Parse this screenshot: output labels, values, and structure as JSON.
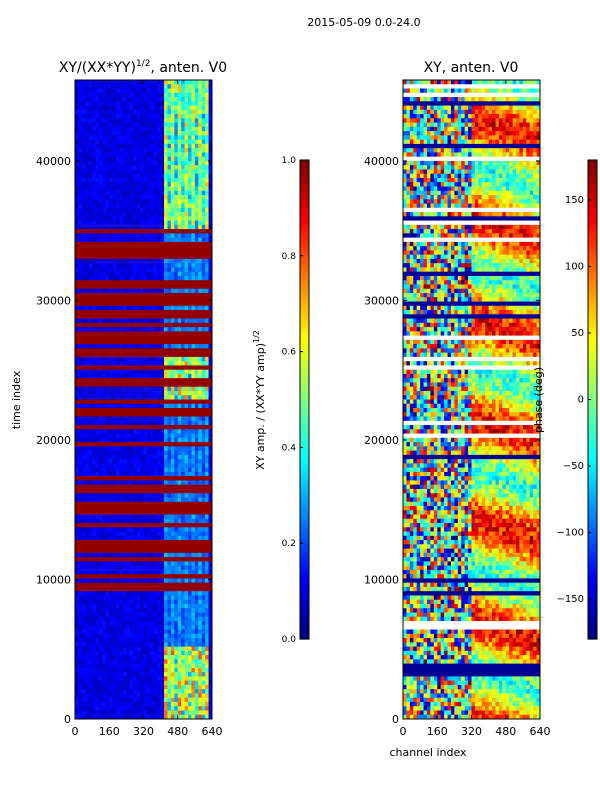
{
  "figure": {
    "suptitle": "2015-05-09 0.0-24.0"
  },
  "chart_data": [
    {
      "type": "heatmap",
      "title": "XY/(XX*YY)^1/2, anten. V0",
      "title_parts": {
        "base": "XY/(XX*YY)",
        "sup": "1/2",
        "tail": ", anten. V0"
      },
      "xlabel": "",
      "ylabel": "time index",
      "xlim": [
        0,
        640
      ],
      "ylim": [
        0,
        45800
      ],
      "xticks": [
        0,
        160,
        320,
        480,
        640
      ],
      "yticks": [
        0,
        10000,
        20000,
        30000,
        40000
      ],
      "colormap": "jet",
      "colorbar": {
        "range": [
          0.0,
          1.0
        ],
        "ticks": [
          "0.0",
          "0.2",
          "0.4",
          "0.6",
          "0.8",
          "1.0"
        ],
        "tick_values": [
          0.0,
          0.2,
          0.4,
          0.6,
          0.8,
          1.0
        ],
        "label": "XY amp. / (XX*YY amp)^1/2",
        "label_parts": {
          "base": "XY amp. / (XX*YY amp)",
          "sup": "1/2"
        }
      }
    },
    {
      "type": "heatmap",
      "title": "XY, anten. V0",
      "xlabel": "channel index",
      "ylabel": "",
      "xlim": [
        0,
        640
      ],
      "ylim": [
        0,
        45800
      ],
      "xticks": [
        0,
        160,
        320,
        480,
        640
      ],
      "yticks": [
        0,
        10000,
        20000,
        30000,
        40000
      ],
      "colormap": "jet",
      "colorbar": {
        "range": [
          -180,
          180
        ],
        "ticks": [
          "150",
          "100",
          "50",
          "0",
          "−50",
          "−100",
          "−150"
        ],
        "tick_values": [
          150,
          100,
          50,
          0,
          -50,
          -100,
          -150
        ],
        "label": "phase (deg)"
      }
    }
  ]
}
